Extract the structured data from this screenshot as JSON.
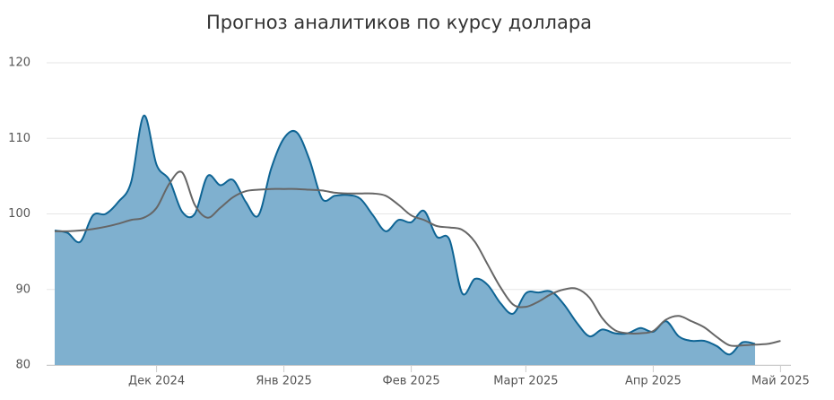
{
  "chart_data": {
    "type": "area-line",
    "title": "Прогноз аналитиков по курсу доллара",
    "categories": [
      null,
      null,
      null,
      null,
      null,
      null,
      null,
      null,
      "Дек 2024",
      null,
      null,
      null,
      null,
      null,
      null,
      null,
      null,
      null,
      "Янв 2025",
      null,
      null,
      null,
      null,
      null,
      null,
      null,
      null,
      null,
      "Фев 2025",
      null,
      null,
      null,
      null,
      null,
      null,
      null,
      null,
      "Март 2025",
      null,
      null,
      null,
      null,
      null,
      null,
      null,
      null,
      null,
      "Апр 2025",
      null,
      null,
      null,
      null,
      null,
      null,
      null,
      null,
      null,
      "Май 2025"
    ],
    "series": [
      {
        "type": "area",
        "color": "#7fb0cf",
        "line_color": "#0e6494",
        "values": [
          97.8,
          97.5,
          96.3,
          99.8,
          100,
          101.6,
          104.2,
          113,
          106.5,
          104.5,
          100.3,
          100,
          105,
          103.8,
          104.5,
          101.6,
          99.8,
          106,
          110,
          110.8,
          107.2,
          102,
          102.4,
          102.5,
          102,
          99.8,
          97.7,
          99.2,
          98.9,
          100.4,
          97,
          96.6,
          89.5,
          91.4,
          90.6,
          88.2,
          86.8,
          89.5,
          89.6,
          89.7,
          88,
          85.6,
          83.8,
          84.7,
          84.2,
          84.2,
          84.9,
          84.4,
          85.8,
          83.8,
          83.2,
          83.2,
          82.5,
          81.4,
          83,
          82.8,
          null,
          null
        ]
      },
      {
        "type": "line",
        "color": "#666666",
        "values": [
          97.7,
          97.7,
          97.8,
          98,
          98.3,
          98.7,
          99.2,
          99.5,
          100.8,
          104,
          105.5,
          101.2,
          99.5,
          100.8,
          102.2,
          103,
          103.2,
          103.3,
          103.3,
          103.3,
          103.2,
          103.1,
          102.8,
          102.7,
          102.7,
          102.7,
          102.4,
          101.2,
          99.8,
          99.2,
          98.4,
          98.2,
          97.9,
          96.3,
          93.3,
          90.3,
          88,
          87.7,
          88.4,
          89.4,
          90,
          90.1,
          88.9,
          86.2,
          84.6,
          84.2,
          84.2,
          84.5,
          86,
          86.5,
          85.8,
          85,
          83.7,
          82.6,
          82.6,
          82.7,
          82.8,
          83.2
        ]
      }
    ],
    "ylim": [
      80,
      120
    ],
    "yticks": [
      80,
      90,
      100,
      110,
      120
    ],
    "grid": true
  }
}
